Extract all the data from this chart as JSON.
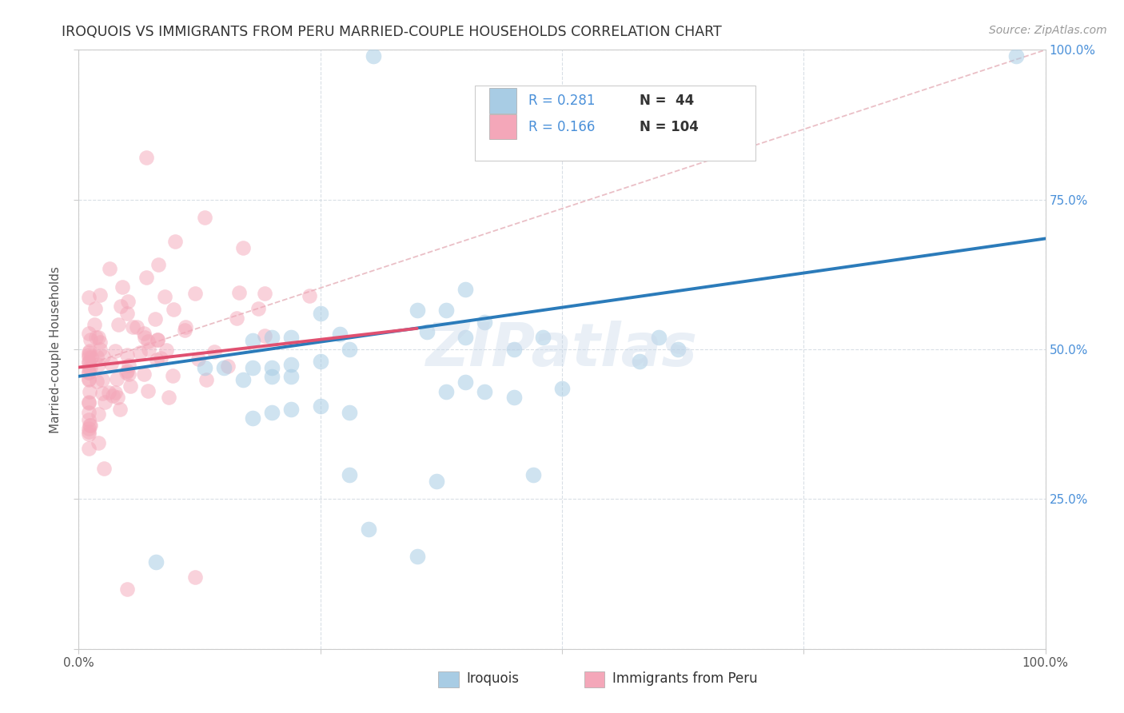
{
  "title": "IROQUOIS VS IMMIGRANTS FROM PERU MARRIED-COUPLE HOUSEHOLDS CORRELATION CHART",
  "source": "Source: ZipAtlas.com",
  "ylabel": "Married-couple Households",
  "xlim": [
    0.0,
    1.0
  ],
  "ylim": [
    0.0,
    1.0
  ],
  "xticks": [
    0.0,
    0.25,
    0.5,
    0.75,
    1.0
  ],
  "yticks": [
    0.0,
    0.25,
    0.5,
    0.75,
    1.0
  ],
  "xticklabels": [
    "0.0%",
    "",
    "",
    "",
    "100.0%"
  ],
  "yticklabels": [
    "",
    "25.0%",
    "50.0%",
    "75.0%",
    "100.0%"
  ],
  "r_iroquois": 0.281,
  "n_iroquois": 44,
  "r_peru": 0.166,
  "n_peru": 104,
  "color_iroquois": "#a8cce4",
  "color_peru": "#f4a7b9",
  "color_iroquois_line": "#2b7bba",
  "color_peru_line": "#e05070",
  "color_diagonal": "#e8b8c0",
  "watermark": "ZIPatlas",
  "iroq_line_x0": 0.0,
  "iroq_line_y0": 0.455,
  "iroq_line_x1": 1.0,
  "iroq_line_y1": 0.685,
  "peru_line_x0": 0.0,
  "peru_line_y0": 0.47,
  "peru_line_x1": 0.35,
  "peru_line_y1": 0.535,
  "diag_line_x0": 0.0,
  "diag_line_y0": 0.47,
  "diag_line_x1": 1.0,
  "diag_line_y1": 1.0
}
